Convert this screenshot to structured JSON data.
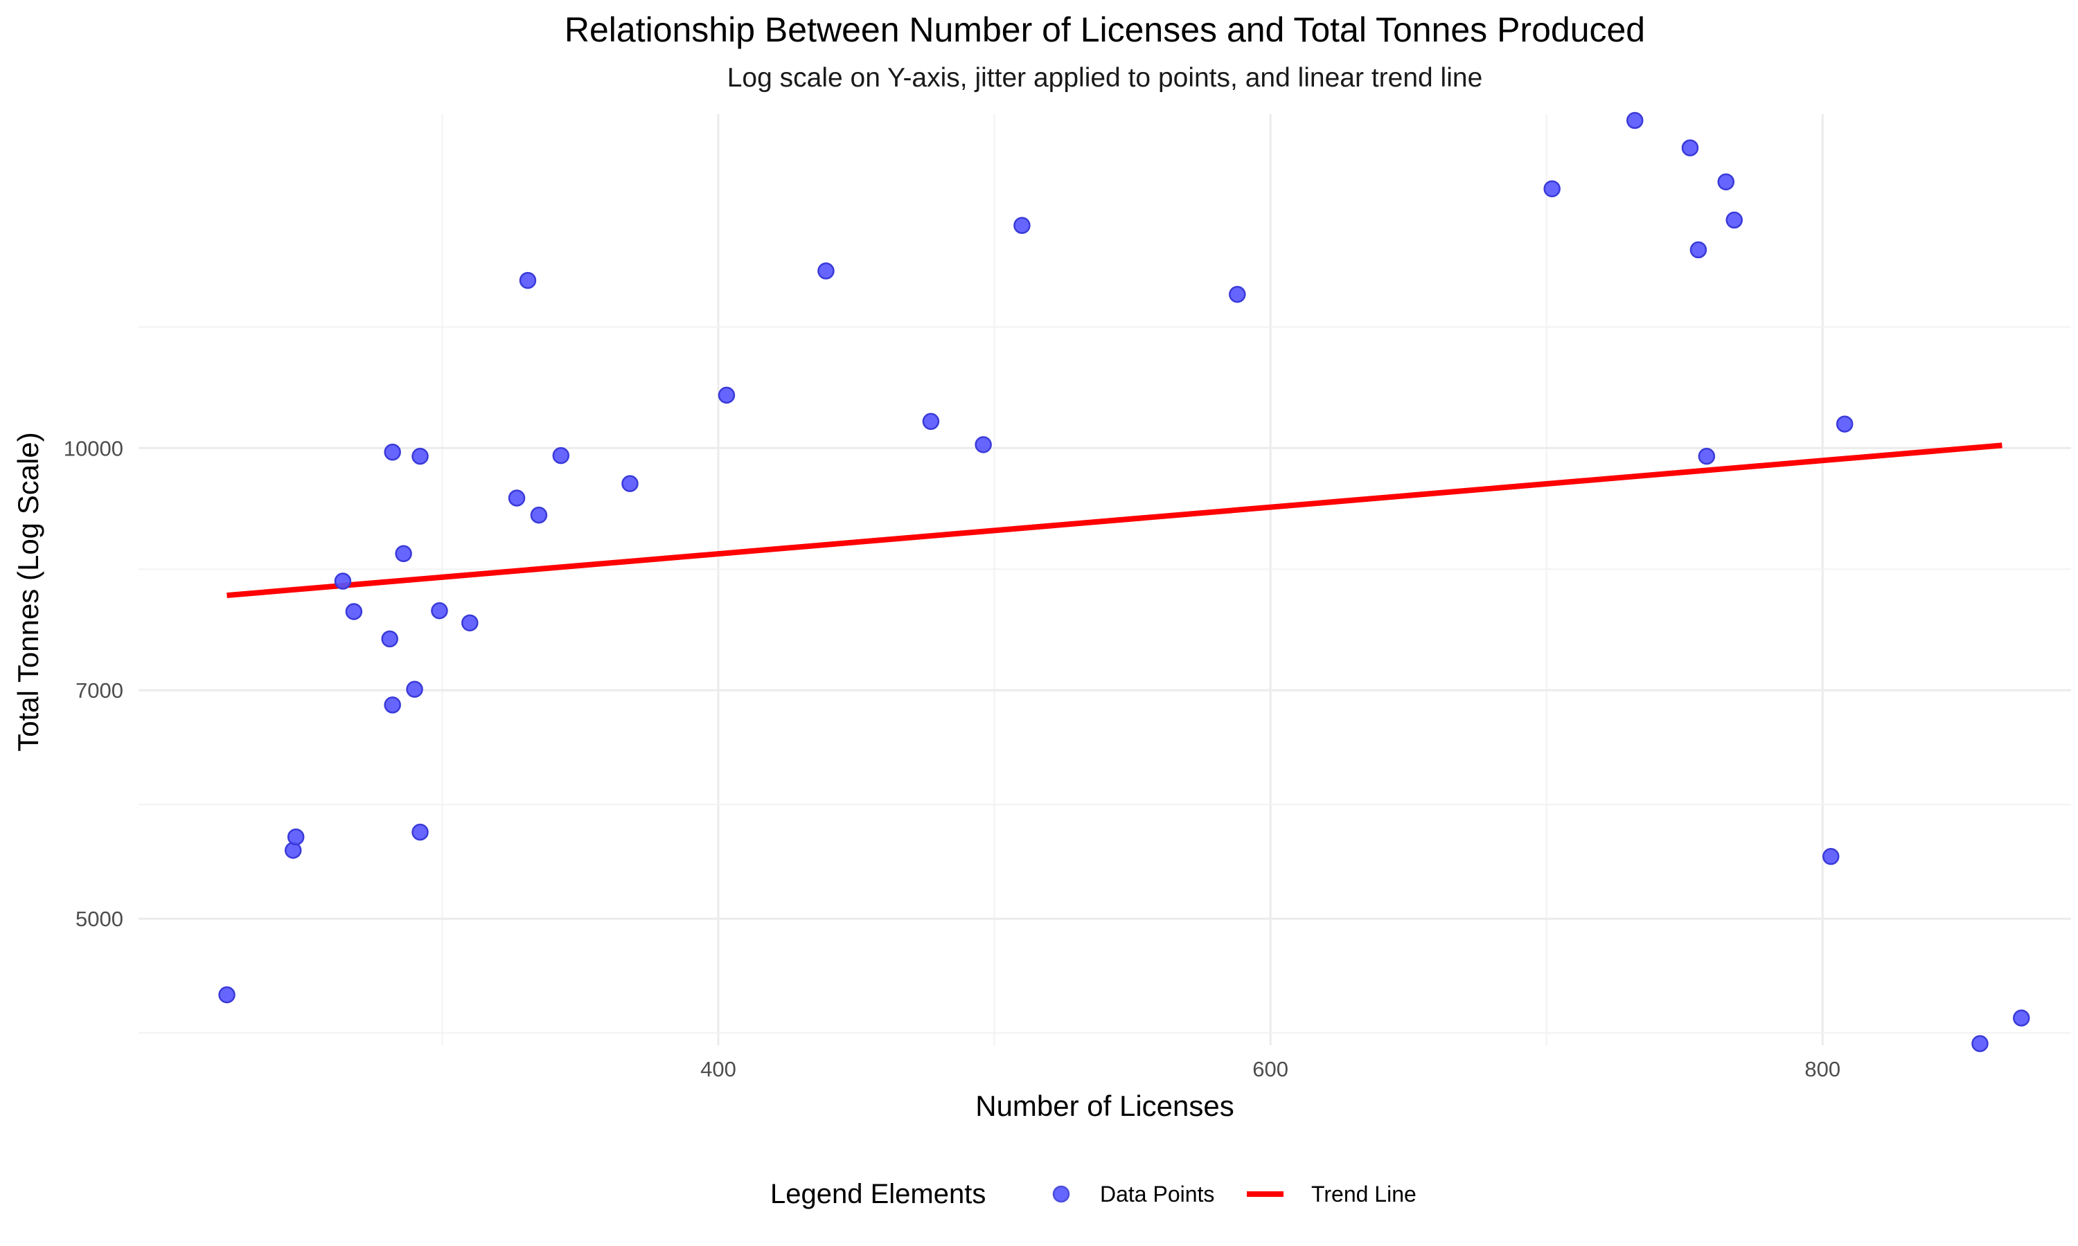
{
  "chart_data": {
    "type": "scatter",
    "title": "Relationship Between Number of Licenses and Total Tonnes Produced",
    "subtitle": "Log scale on Y-axis, jitter applied to points, and linear trend line",
    "xlabel": "Number of Licenses",
    "ylabel": "Total Tonnes (Log Scale)",
    "x_ticks": [
      400,
      600,
      800
    ],
    "y_ticks": [
      5000,
      7000,
      10000
    ],
    "xlim": [
      190,
      890
    ],
    "ylim": [
      4150,
      16350
    ],
    "y_scale": "log",
    "grid": true,
    "legend": {
      "title": "Legend Elements",
      "position": "bottom",
      "items": [
        {
          "label": "Data Points",
          "kind": "point",
          "color": "#5555ff"
        },
        {
          "label": "Trend Line",
          "kind": "line",
          "color": "#ff0000"
        }
      ]
    },
    "series": [
      {
        "name": "Data Points",
        "color": "#5555ff",
        "x": [
          222,
          246,
          247,
          264,
          268,
          281,
          282,
          282,
          286,
          290,
          292,
          292,
          299,
          310,
          327,
          331,
          335,
          343,
          368,
          403,
          439,
          477,
          496,
          510,
          588,
          702,
          732,
          752,
          755,
          758,
          765,
          768,
          803,
          808,
          857,
          872
        ],
        "y": [
          4470,
          5530,
          5640,
          8220,
          7860,
          7550,
          6850,
          9940,
          8560,
          7010,
          9880,
          5680,
          7870,
          7730,
          9290,
          12800,
          9060,
          9890,
          9490,
          10810,
          12980,
          10400,
          10050,
          13880,
          12540,
          14650,
          16200,
          15560,
          13390,
          9880,
          14800,
          13990,
          5480,
          10360,
          4160,
          4320
        ]
      },
      {
        "name": "Trend Line",
        "color": "#ff0000",
        "type": "line",
        "x": [
          222,
          865
        ],
        "y": [
          8050,
          10040
        ]
      }
    ]
  }
}
